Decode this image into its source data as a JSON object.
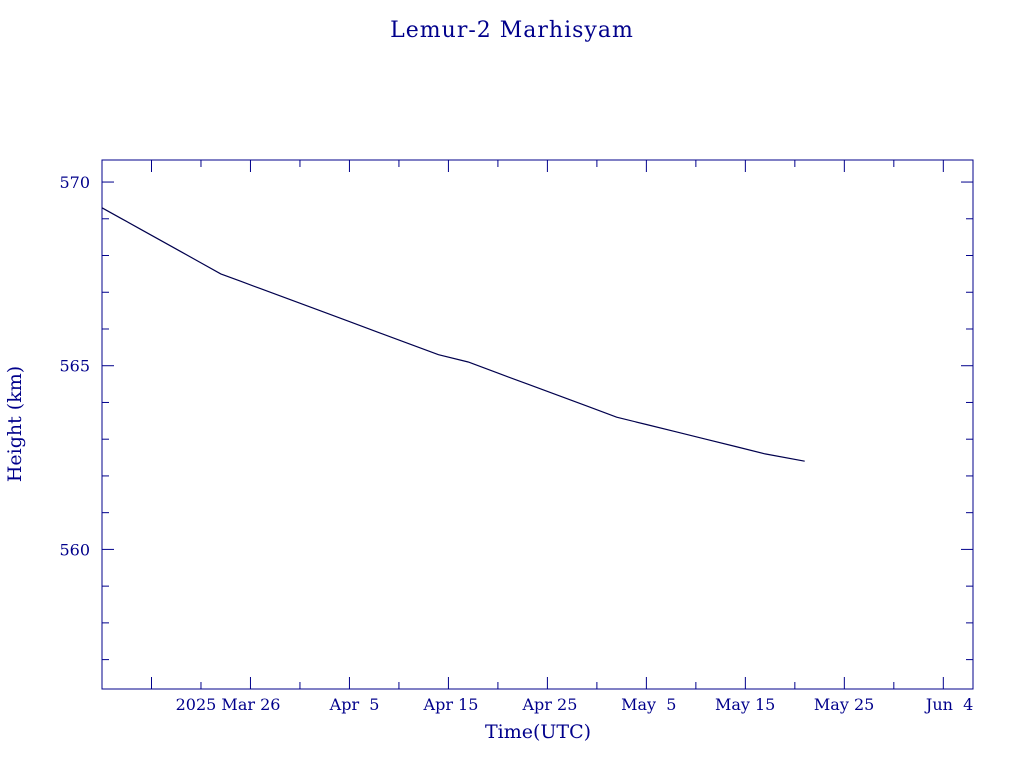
{
  "chart_data": {
    "type": "line",
    "title": "Lemur-2 Marhisyam",
    "xlabel": "Time(UTC)",
    "ylabel": "Height (km)",
    "x_type": "date",
    "xlim": [
      "2025-03-11",
      "2025-06-07"
    ],
    "ylim": [
      556.2,
      570.6
    ],
    "x_tick_labels": [
      "2025 Mar 26",
      "Apr  5",
      "Apr 15",
      "Apr 25",
      "May  5",
      "May 15",
      "May 25",
      "Jun  4"
    ],
    "y_tick_labels": [
      "560",
      "565",
      "570"
    ],
    "y_ticks": [
      560,
      565,
      570
    ],
    "grid": false,
    "line_color": "#00004d",
    "axis_color": "#00008b",
    "series": [
      {
        "x": [
          "2025-03-11",
          "2025-03-13",
          "2025-03-15",
          "2025-03-17",
          "2025-03-19",
          "2025-03-21",
          "2025-03-23",
          "2025-03-25",
          "2025-03-27",
          "2025-03-30",
          "2025-04-02",
          "2025-04-05",
          "2025-04-08",
          "2025-04-11",
          "2025-04-14",
          "2025-04-17",
          "2025-04-20",
          "2025-04-23",
          "2025-04-26",
          "2025-04-29",
          "2025-05-02",
          "2025-05-05",
          "2025-05-08",
          "2025-05-11",
          "2025-05-14",
          "2025-05-17",
          "2025-05-21"
        ],
        "y": [
          569.3,
          569.0,
          568.7,
          568.4,
          568.1,
          567.8,
          567.5,
          567.3,
          567.1,
          566.8,
          566.5,
          566.2,
          565.9,
          565.6,
          565.3,
          565.1,
          564.8,
          564.5,
          564.2,
          563.9,
          563.6,
          563.4,
          563.2,
          563.0,
          562.8,
          562.6,
          562.4
        ]
      }
    ]
  }
}
